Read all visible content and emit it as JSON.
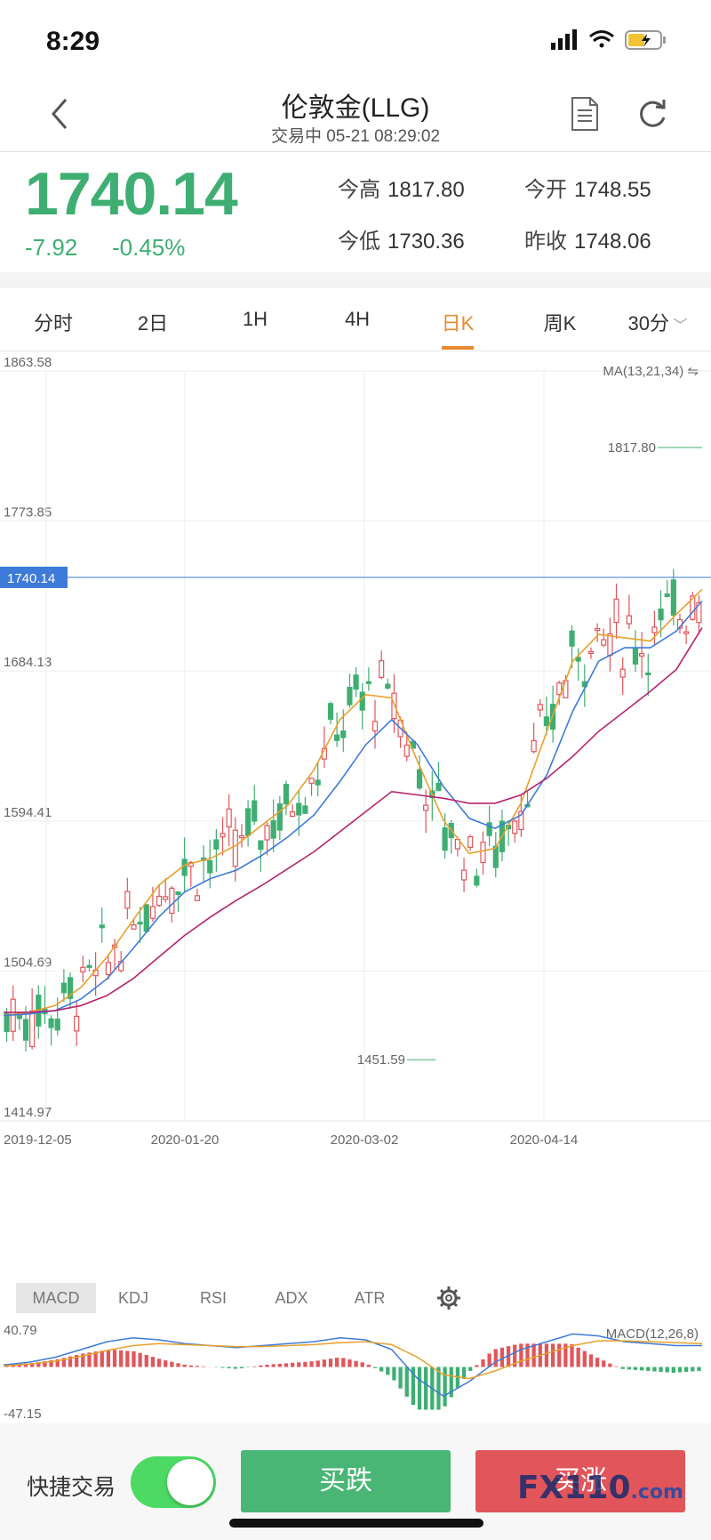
{
  "status_bar": {
    "time": "8:29"
  },
  "header": {
    "title": "伦敦金(LLG)",
    "subtitle": "交易中 05-21 08:29:02"
  },
  "quote": {
    "price": "1740.14",
    "change": "-7.92",
    "change_pct": "-0.45%",
    "high_label": "今高",
    "high": "1817.80",
    "open_label": "今开",
    "open": "1748.55",
    "low_label": "今低",
    "low": "1730.36",
    "prev_close_label": "昨收",
    "prev_close": "1748.06"
  },
  "tabs": [
    "分时",
    "2日",
    "1H",
    "4H",
    "日K",
    "周K",
    "30分"
  ],
  "active_tab": "日K",
  "chart": {
    "indicator_label": "MA(13,21,34)",
    "current_price_tag": "1740.14",
    "max_marker": "1817.80",
    "min_marker": "1451.59"
  },
  "indicator_tabs": [
    "MACD",
    "KDJ",
    "RSI",
    "ADX",
    "ATR"
  ],
  "macd": {
    "label": "MACD(12,26,8)",
    "top": "40.79",
    "bottom": "-47.15"
  },
  "bottom_bar": {
    "quick_trade_label": "快捷交易",
    "buy_label": "买跌",
    "sell_label": "买涨",
    "watermark": "FX110",
    "watermark_suffix": ".com"
  },
  "colors": {
    "up": "#e2555a",
    "down": "#3fae72",
    "accent": "#e88a2c",
    "price_line": "#3e7bd8"
  },
  "chart_data": {
    "type": "candlestick",
    "y_ticks": [
      1863.58,
      1773.85,
      1684.13,
      1594.41,
      1504.69,
      1414.97
    ],
    "x_ticks": [
      "2019-12-05",
      "2020-01-20",
      "2020-03-02",
      "2020-04-14"
    ],
    "ylim": [
      1414.97,
      1863.58
    ],
    "series": [
      {
        "name": "MA13",
        "values": [
          1478,
          1480,
          1484,
          1495,
          1513,
          1535,
          1556,
          1568,
          1572,
          1580,
          1592,
          1604,
          1625,
          1655,
          1670,
          1668,
          1630,
          1595,
          1575,
          1578,
          1605,
          1648,
          1690,
          1706,
          1704,
          1702,
          1718,
          1733
        ]
      },
      {
        "name": "MA21",
        "values": [
          1478,
          1479,
          1481,
          1488,
          1500,
          1518,
          1537,
          1552,
          1560,
          1565,
          1574,
          1585,
          1598,
          1618,
          1640,
          1655,
          1640,
          1615,
          1596,
          1590,
          1598,
          1622,
          1660,
          1690,
          1698,
          1698,
          1708,
          1726
        ]
      },
      {
        "name": "MA34",
        "values": [
          1480,
          1480,
          1481,
          1484,
          1490,
          1500,
          1513,
          1526,
          1537,
          1547,
          1556,
          1566,
          1576,
          1588,
          1600,
          1612,
          1610,
          1608,
          1605,
          1605,
          1610,
          1620,
          1633,
          1648,
          1660,
          1672,
          1685,
          1710
        ]
      }
    ],
    "macd": {
      "ylim": [
        -47.15,
        40.79
      ],
      "dif": [
        2,
        5,
        10,
        18,
        26,
        30,
        28,
        24,
        22,
        20,
        22,
        24,
        26,
        30,
        28,
        18,
        -12,
        -30,
        -15,
        5,
        18,
        26,
        34,
        32,
        26,
        24,
        22,
        22
      ],
      "dea": [
        1,
        3,
        6,
        11,
        17,
        22,
        24,
        23,
        22,
        21,
        21,
        22,
        23,
        25,
        26,
        23,
        10,
        -8,
        -12,
        -4,
        6,
        14,
        22,
        27,
        27,
        26,
        25,
        24
      ]
    }
  }
}
